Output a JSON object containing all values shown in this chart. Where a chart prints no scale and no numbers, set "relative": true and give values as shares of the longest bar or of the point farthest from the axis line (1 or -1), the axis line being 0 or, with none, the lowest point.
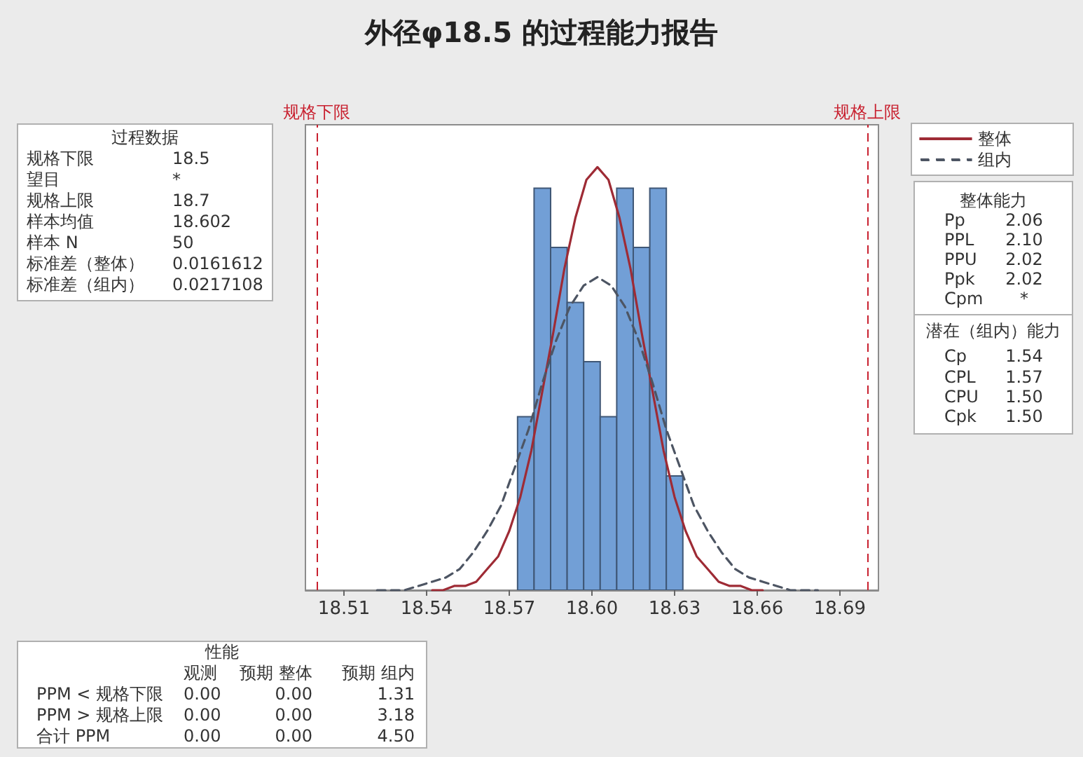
{
  "chart_data": [
    {
      "type": "histogram",
      "title": "外径φ18.5 的过程能力报告",
      "relative": true,
      "legend": "top right",
      "bins": [
        18.573,
        18.579,
        18.585,
        18.591,
        18.597,
        18.603,
        18.609,
        18.615,
        18.621,
        18.627,
        18.633
      ],
      "xlim": [
        18.496,
        18.704
      ],
      "xticks": [
        18.51,
        18.54,
        18.57,
        {
          "value": 18.6,
          "label": "18.60"
        },
        18.63,
        18.66,
        18.69
      ],
      "ref_lines": [
        {
          "axis": "x",
          "value": 18.5,
          "label": "规格下限",
          "color": "#c8202f",
          "line_style": "dashed"
        },
        {
          "axis": "x",
          "value": 18.7,
          "label": "规格上限",
          "color": "#c8202f",
          "line_style": "dashed"
        }
      ],
      "series": [
        {
          "type": "histogram",
          "color": "#729fd6",
          "values": [
            0.41,
            0.95,
            0.81,
            0.68,
            0.54,
            0.41,
            0.95,
            0.81,
            0.95,
            0.27
          ]
        },
        {
          "type": "line",
          "name": "整体",
          "color": "#9e2b35",
          "line_style": "solid",
          "x": [
            18.542,
            18.546,
            18.55,
            18.554,
            18.558,
            18.562,
            18.566,
            18.57,
            18.574,
            18.578,
            18.582,
            18.586,
            18.59,
            18.594,
            18.598,
            18.602,
            18.606,
            18.61,
            18.614,
            18.618,
            18.622,
            18.626,
            18.63,
            18.634,
            18.638,
            18.642,
            18.646,
            18.65,
            18.654,
            18.658,
            18.662
          ],
          "values": [
            0,
            0,
            0.01,
            0.01,
            0.02,
            0.05,
            0.08,
            0.14,
            0.22,
            0.33,
            0.47,
            0.61,
            0.76,
            0.88,
            0.97,
            1,
            0.97,
            0.88,
            0.76,
            0.61,
            0.47,
            0.33,
            0.22,
            0.14,
            0.08,
            0.05,
            0.02,
            0.01,
            0.01,
            0,
            0
          ]
        },
        {
          "type": "line",
          "name": "组内",
          "color": "#4d5563",
          "line_style": "dashed",
          "x": [
            18.522,
            18.527,
            18.532,
            18.537,
            18.542,
            18.547,
            18.552,
            18.557,
            18.562,
            18.567,
            18.572,
            18.577,
            18.582,
            18.587,
            18.592,
            18.597,
            18.602,
            18.607,
            18.612,
            18.617,
            18.622,
            18.627,
            18.632,
            18.637,
            18.642,
            18.647,
            18.652,
            18.657,
            18.662,
            18.667,
            18.672,
            18.677,
            18.682
          ],
          "values": [
            0,
            0,
            0,
            0.01,
            0.02,
            0.03,
            0.05,
            0.09,
            0.14,
            0.2,
            0.29,
            0.38,
            0.49,
            0.59,
            0.67,
            0.72,
            0.74,
            0.72,
            0.67,
            0.59,
            0.49,
            0.38,
            0.29,
            0.2,
            0.14,
            0.09,
            0.05,
            0.03,
            0.02,
            0.01,
            0,
            0,
            0
          ]
        }
      ]
    },
    {
      "type": "other",
      "title": "过程数据",
      "categories": [
        "规格下限",
        "望目",
        "规格上限",
        "样本均值",
        "样本 N",
        "标准差（整体）",
        "标准差（组内）"
      ],
      "value_labels": [
        "18.5",
        "*",
        "18.7",
        "18.602",
        "50",
        "0.0161612",
        "0.0217108"
      ]
    },
    {
      "type": "other",
      "title": "整体能力",
      "categories": [
        "Pp",
        "PPL",
        "PPU",
        "Ppk",
        "Cpm"
      ],
      "value_labels": [
        "2.06",
        "2.10",
        "2.02",
        "2.02",
        "*"
      ]
    },
    {
      "type": "other",
      "title": "潜在（组内）能力",
      "categories": [
        "Cp",
        "CPL",
        "CPU",
        "Cpk"
      ],
      "value_labels": [
        "1.54",
        "1.57",
        "1.50",
        "1.50"
      ]
    },
    {
      "type": "other",
      "title": "性能",
      "categories": [
        "PPM < 规格下限",
        "PPM > 规格上限",
        "合计 PPM"
      ],
      "series": [
        {
          "name": "观测",
          "values": [
            0,
            0,
            0
          ],
          "value_labels": [
            "0.00",
            "0.00",
            "0.00"
          ]
        },
        {
          "name": "预期 整体",
          "values": [
            0,
            0,
            0
          ],
          "value_labels": [
            "0.00",
            "0.00",
            "0.00"
          ]
        },
        {
          "name": "预期 组内",
          "values": [
            1.31,
            3.18,
            4.5
          ],
          "value_labels": [
            "1.31",
            "3.18",
            "4.50"
          ]
        }
      ]
    }
  ]
}
